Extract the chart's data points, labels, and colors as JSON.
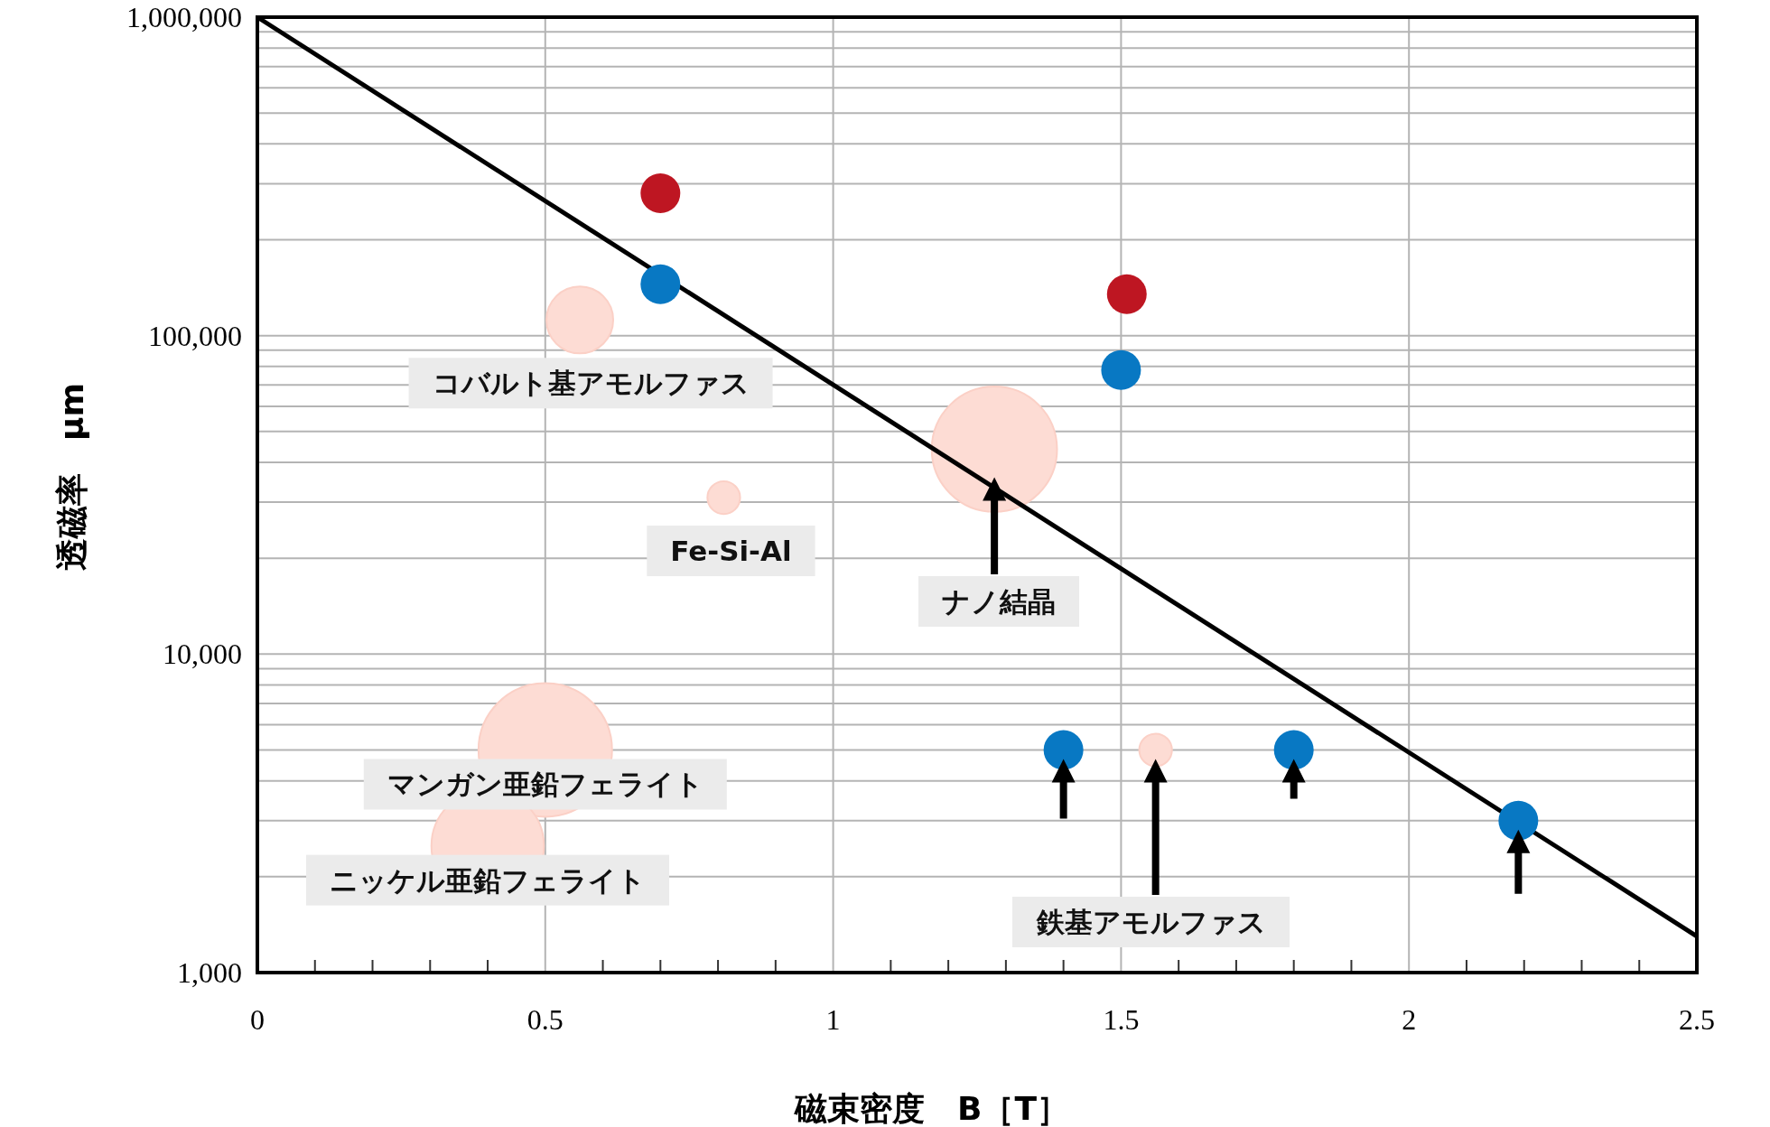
{
  "chart_data": {
    "type": "scatter",
    "xlabel": "磁束密度　B［T］",
    "ylabel": "透磁率　μm",
    "xlim": [
      0,
      2.5
    ],
    "xticks": [
      0,
      0.5,
      1,
      1.5,
      2,
      2.5
    ],
    "ylim": [
      1000,
      1000000
    ],
    "yticks": [
      {
        "value": 1000,
        "label": "1,000"
      },
      {
        "value": 10000,
        "label": "10,000"
      },
      {
        "value": 100000,
        "label": "100,000"
      },
      {
        "value": 1000000,
        "label": "1,000,000"
      }
    ],
    "log": "y",
    "grid": true,
    "series": [
      {
        "type": "bubble",
        "marker": "circle",
        "color": "#fddcd4",
        "x": [
          0.56,
          0.81,
          0.5,
          0.4,
          1.56,
          1.28
        ],
        "values": [
          112000,
          31000,
          5000,
          2500,
          5000,
          44000
        ],
        "sizes": [
          0.25,
          0.06,
          1,
          0.71,
          0.06,
          0.88
        ]
      },
      {
        "type": "line",
        "color": "#000000",
        "x": [
          0,
          2.5
        ],
        "values": [
          1000000,
          1300
        ]
      },
      {
        "marker": "circle",
        "color": "#be1622",
        "x": [
          0.7,
          1.51
        ],
        "values": [
          280000,
          135000
        ]
      },
      {
        "marker": "circle",
        "color": "#0878c3",
        "x": [
          0.7,
          1.5,
          1.4,
          1.8,
          2.19
        ],
        "values": [
          145000,
          78000,
          5000,
          5000,
          3000
        ]
      }
    ],
    "annotations": [
      {
        "text": "コバルト基アモルファス",
        "x": 0.56,
        "y": 112000
      },
      {
        "text": "Fe-Si-Al",
        "x": 0.81,
        "y": 31000
      },
      "ナノ結晶",
      {
        "text": "マンガン亜鉛フェライト",
        "x": 0.5,
        "y": 5000
      },
      {
        "text": "ニッケル亜鉛フェライト",
        "x": 0.4,
        "y": 2500
      },
      "鉄基アモルファス"
    ]
  }
}
